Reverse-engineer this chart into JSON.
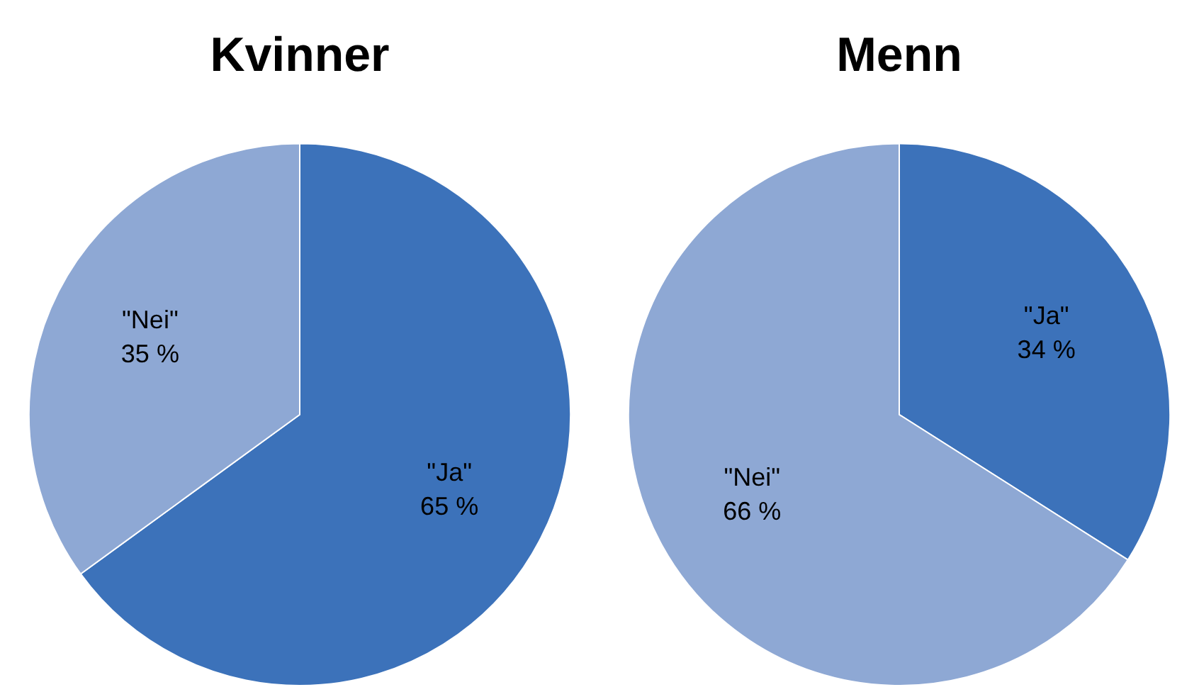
{
  "chart_data": [
    {
      "type": "pie",
      "title": "Kvinner",
      "categories": [
        "\"Ja\"",
        "\"Nei\""
      ],
      "values": [
        65,
        35
      ],
      "value_labels": [
        "65 %",
        "35 %"
      ],
      "colors": [
        "#3c72ba",
        "#8ea8d4"
      ],
      "legend": false
    },
    {
      "type": "pie",
      "title": "Menn",
      "categories": [
        "\"Ja\"",
        "\"Nei\""
      ],
      "values": [
        34,
        66
      ],
      "value_labels": [
        "34 %",
        "66 %"
      ],
      "colors": [
        "#3c72ba",
        "#8ea8d4"
      ],
      "legend": false
    }
  ]
}
